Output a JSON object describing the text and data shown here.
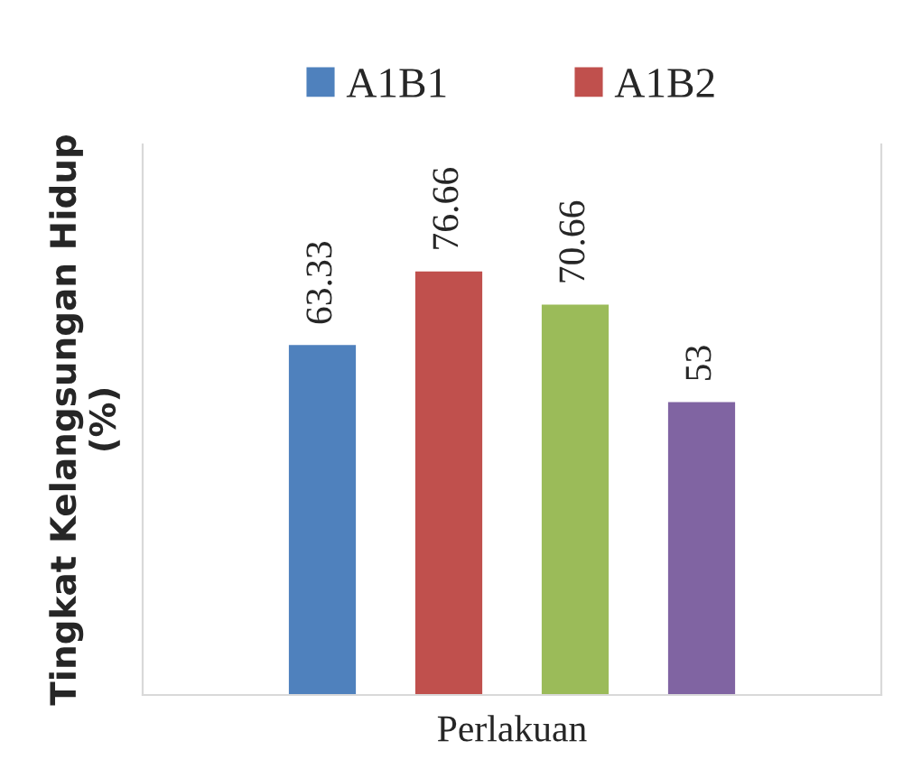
{
  "chart_data": {
    "type": "bar",
    "xlabel": "Perlakuan",
    "ylabel": "Tingkat Kelangsungan Hidup\n(%)",
    "categories": [
      null,
      null,
      null,
      null
    ],
    "series": [
      {
        "name": "A1B1",
        "color": "#4f81bd",
        "values": [
          63.33,
          null,
          null,
          null
        ]
      },
      {
        "name": "A1B2",
        "color": "#c0504d",
        "values": [
          null,
          76.66,
          null,
          null
        ]
      },
      {
        "color": "#9bbb59",
        "values": [
          null,
          null,
          70.66,
          null
        ]
      },
      {
        "color": "#8064a2",
        "values": [
          null,
          null,
          null,
          53
        ]
      }
    ],
    "stacked": true,
    "data_labels": true,
    "legend": "top",
    "tick_labels": false
  }
}
